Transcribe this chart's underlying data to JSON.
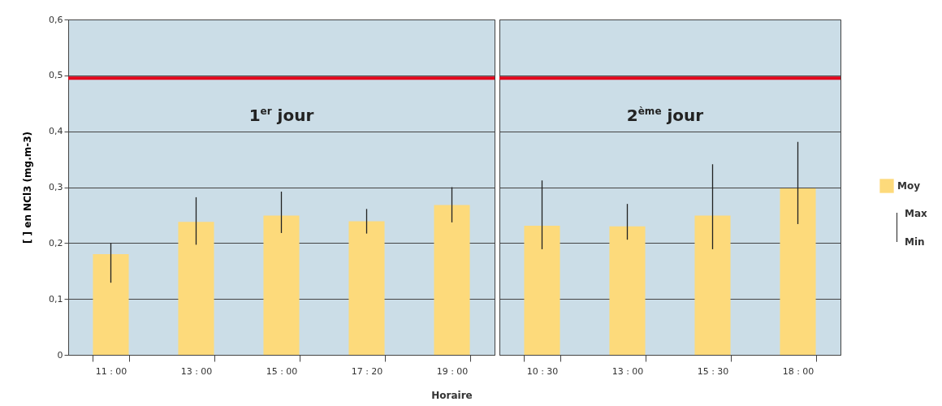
{
  "chart_data": [
    {
      "type": "bar",
      "ylabel": "[ ] en NCl3 (mg.m-3)",
      "xlabel": "Horaire",
      "annotations": [
        "1$^{er}$ jour"
      ],
      "categories": [
        "11 : 00",
        "13 : 00",
        "15 : 00",
        "17 : 20",
        "19 : 00"
      ],
      "series": [
        {
          "color": "#fdda7b",
          "values": [
            0.18,
            0.238,
            0.249,
            0.239,
            0.268
          ],
          "errors": [
            [
              0.129,
              0.2
            ],
            [
              0.197,
              0.282
            ],
            [
              0.218,
              0.292
            ],
            [
              0.217,
              0.261
            ],
            [
              0.237,
              0.3
            ]
          ]
        }
      ],
      "ylim": [
        0,
        0.6
      ],
      "yticks": [
        0,
        {
          "value": 0.1,
          "label": "0,1"
        },
        {
          "value": 0.2,
          "label": "0,2"
        },
        {
          "value": 0.3,
          "label": "0,3"
        },
        {
          "value": 0.4,
          "label": "0,4"
        },
        {
          "value": 0.5,
          "label": "0,5"
        },
        {
          "value": 0.6,
          "label": "0,6"
        }
      ],
      "ref_lines": [
        {
          "axis": "y",
          "value": 0.495,
          "color": "#e2001a"
        }
      ],
      "grid": "y",
      "legend": false
    },
    {
      "type": "bar",
      "annotations": [
        "2$^{ème}$ jour",
        "Max",
        "Min"
      ],
      "categories": [
        "10 : 30",
        "13 : 00",
        "15 : 30",
        "18 : 00"
      ],
      "series": [
        {
          "name": "Moy",
          "color": "#fdda7b",
          "values": [
            0.231,
            0.23,
            0.249,
            0.298
          ],
          "errors": [
            [
              0.189,
              0.312
            ],
            [
              0.206,
              0.27
            ],
            [
              0.189,
              0.341
            ],
            [
              0.234,
              0.381
            ]
          ]
        }
      ],
      "ylim": [
        0,
        0.6
      ],
      "yticks": [
        {
          "value": 0,
          "label": null
        },
        {
          "value": 0.1,
          "label": null
        },
        {
          "value": 0.2,
          "label": null
        },
        {
          "value": 0.3,
          "label": null
        },
        {
          "value": 0.4,
          "label": null
        },
        {
          "value": 0.5,
          "label": null
        },
        {
          "value": 0.6,
          "label": null
        }
      ],
      "ref_lines": [
        {
          "axis": "y",
          "value": 0.495,
          "color": "#e2001a"
        }
      ],
      "grid": "y",
      "legend": "right",
      "tick_labels": "x"
    }
  ]
}
